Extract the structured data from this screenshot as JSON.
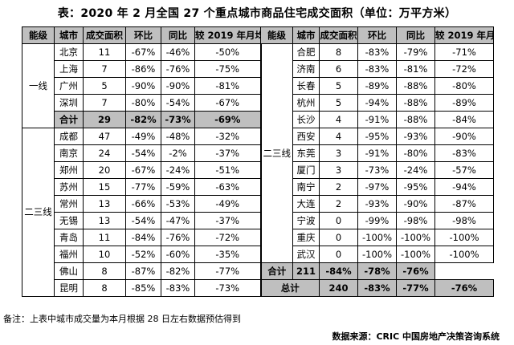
{
  "title": "表：2020 年 2 月全国 27 个重点城市商品住宅成交面积（单位：万平方米）",
  "headers": [
    "能级",
    "城市",
    "成交面积",
    "环比",
    "同比",
    "较 2019 年月均"
  ],
  "left": {
    "tier1_label": "一线",
    "tier23_label": "二三线",
    "tier1_rows": [
      [
        "北京",
        "11",
        "-67%",
        "-46%",
        "-50%"
      ],
      [
        "上海",
        "7",
        "-86%",
        "-76%",
        "-75%"
      ],
      [
        "广州",
        "5",
        "-90%",
        "-90%",
        "-81%"
      ],
      [
        "深圳",
        "7",
        "-80%",
        "-54%",
        "-67%"
      ]
    ],
    "tier1_total": [
      "合计",
      "29",
      "-82%",
      "-73%",
      "-69%"
    ],
    "tier23_rows": [
      [
        "成都",
        "47",
        "-49%",
        "-48%",
        "-32%"
      ],
      [
        "南京",
        "24",
        "-54%",
        "-2%",
        "-37%"
      ],
      [
        "郑州",
        "20",
        "-67%",
        "-24%",
        "-51%"
      ],
      [
        "苏州",
        "15",
        "-77%",
        "-59%",
        "-63%"
      ],
      [
        "常州",
        "13",
        "-66%",
        "-53%",
        "-49%"
      ],
      [
        "无锡",
        "13",
        "-54%",
        "-47%",
        "-37%"
      ],
      [
        "青岛",
        "11",
        "-84%",
        "-76%",
        "-72%"
      ],
      [
        "福州",
        "10",
        "-52%",
        "-60%",
        "-35%"
      ],
      [
        "佛山",
        "8",
        "-87%",
        "-82%",
        "-77%"
      ],
      [
        "昆明",
        "8",
        "-85%",
        "-83%",
        "-73%"
      ]
    ]
  },
  "right": {
    "tier_label": "二三线",
    "rows": [
      [
        "合肥",
        "8",
        "-83%",
        "-79%",
        "-71%"
      ],
      [
        "济南",
        "6",
        "-83%",
        "-81%",
        "-72%"
      ],
      [
        "长春",
        "5",
        "-89%",
        "-88%",
        "-80%"
      ],
      [
        "杭州",
        "5",
        "-94%",
        "-88%",
        "-89%"
      ],
      [
        "长沙",
        "4",
        "-91%",
        "-88%",
        "-84%"
      ],
      [
        "西安",
        "4",
        "-95%",
        "-93%",
        "-90%"
      ],
      [
        "东莞",
        "3",
        "-91%",
        "-80%",
        "-83%"
      ],
      [
        "厦门",
        "3",
        "-73%",
        "-24%",
        "-57%"
      ],
      [
        "南宁",
        "2",
        "-97%",
        "-95%",
        "-94%"
      ],
      [
        "大连",
        "2",
        "-93%",
        "-90%",
        "-87%"
      ],
      [
        "宁波",
        "0",
        "-99%",
        "-98%",
        "-98%"
      ],
      [
        "重庆",
        "0",
        "-100%",
        "-100%",
        "-100%"
      ],
      [
        "武汉",
        "0",
        "-100%",
        "-100%",
        "-100%"
      ]
    ],
    "subtotal": [
      "合计",
      "211",
      "-84%",
      "-78%",
      "-76%"
    ],
    "grand_total": [
      "总计",
      "240",
      "-83%",
      "-77%",
      "-76%"
    ]
  },
  "note": "备注：上表中城市成交量为本月根据 28 日左右数据预估得到",
  "source": "数据来源：CRIC 中国房地产决策咨询系统"
}
